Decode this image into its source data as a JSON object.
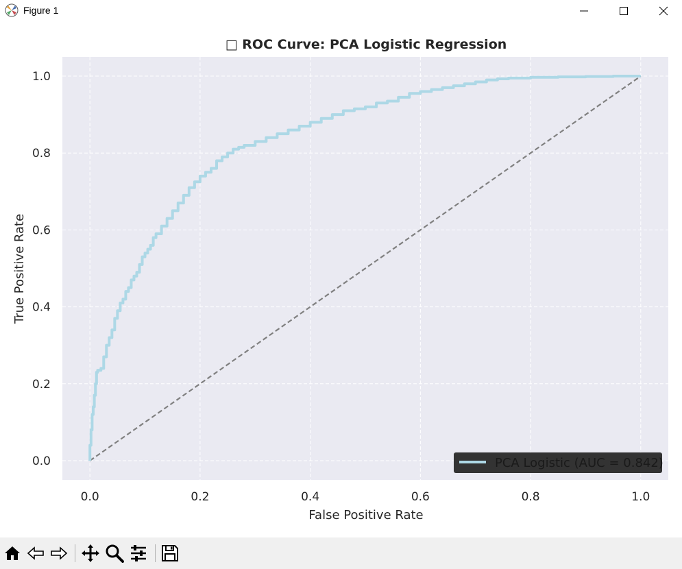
{
  "window": {
    "title": "Figure 1",
    "minimize_icon": "minimize-icon",
    "maximize_icon": "maximize-icon",
    "close_icon": "close-icon"
  },
  "toolbar": {
    "icons": [
      "home-icon",
      "back-icon",
      "forward-icon",
      "pan-icon",
      "zoom-icon",
      "configure-subplots-icon",
      "save-icon"
    ]
  },
  "chart_data": {
    "type": "line",
    "title": "□ ROC Curve: PCA Logistic Regression",
    "xlabel": "False Positive Rate",
    "ylabel": "True Positive Rate",
    "xlim": [
      -0.05,
      1.05
    ],
    "ylim": [
      -0.05,
      1.05
    ],
    "xticks": [
      0.0,
      0.2,
      0.4,
      0.6,
      0.8,
      1.0
    ],
    "xtick_labels": [
      "0.0",
      "0.2",
      "0.4",
      "0.6",
      "0.8",
      "1.0"
    ],
    "yticks": [
      0.0,
      0.2,
      0.4,
      0.6,
      0.8,
      1.0
    ],
    "ytick_labels": [
      "0.0",
      "0.2",
      "0.4",
      "0.6",
      "0.8",
      "1.0"
    ],
    "grid": true,
    "legend_position": "lower-right",
    "colors": {
      "plot_background": "#eaeaf2",
      "grid": "#ffffff",
      "roc_line": "#add8e6",
      "diagonal": "#808080",
      "legend_background": "#333333",
      "legend_text": "#1a1a1a"
    },
    "series": [
      {
        "name": "PCA Logistic (AUC = 0.842)",
        "x": [
          0.0,
          0.0,
          0.002,
          0.004,
          0.006,
          0.008,
          0.01,
          0.012,
          0.014,
          0.016,
          0.02,
          0.025,
          0.03,
          0.035,
          0.04,
          0.045,
          0.05,
          0.055,
          0.06,
          0.065,
          0.07,
          0.075,
          0.08,
          0.085,
          0.09,
          0.095,
          0.1,
          0.105,
          0.11,
          0.115,
          0.12,
          0.13,
          0.14,
          0.15,
          0.16,
          0.17,
          0.18,
          0.19,
          0.2,
          0.21,
          0.22,
          0.23,
          0.24,
          0.25,
          0.26,
          0.27,
          0.28,
          0.3,
          0.32,
          0.34,
          0.36,
          0.38,
          0.4,
          0.42,
          0.44,
          0.46,
          0.48,
          0.5,
          0.52,
          0.54,
          0.56,
          0.58,
          0.6,
          0.62,
          0.64,
          0.66,
          0.68,
          0.7,
          0.72,
          0.74,
          0.76,
          0.8,
          0.85,
          0.9,
          0.95,
          1.0
        ],
        "y": [
          0.0,
          0.04,
          0.08,
          0.12,
          0.14,
          0.17,
          0.2,
          0.23,
          0.235,
          0.235,
          0.24,
          0.27,
          0.3,
          0.32,
          0.34,
          0.37,
          0.39,
          0.41,
          0.42,
          0.44,
          0.45,
          0.47,
          0.48,
          0.49,
          0.51,
          0.53,
          0.54,
          0.55,
          0.56,
          0.58,
          0.59,
          0.61,
          0.63,
          0.65,
          0.67,
          0.69,
          0.71,
          0.725,
          0.74,
          0.75,
          0.76,
          0.78,
          0.79,
          0.8,
          0.81,
          0.815,
          0.82,
          0.83,
          0.84,
          0.85,
          0.86,
          0.87,
          0.88,
          0.89,
          0.9,
          0.91,
          0.915,
          0.92,
          0.93,
          0.935,
          0.945,
          0.955,
          0.96,
          0.965,
          0.97,
          0.975,
          0.98,
          0.985,
          0.99,
          0.993,
          0.995,
          0.997,
          0.998,
          0.999,
          1.0,
          1.0
        ]
      },
      {
        "name": "",
        "x": [
          0.0,
          1.0
        ],
        "y": [
          0.0,
          1.0
        ],
        "style": "dashed"
      }
    ]
  }
}
